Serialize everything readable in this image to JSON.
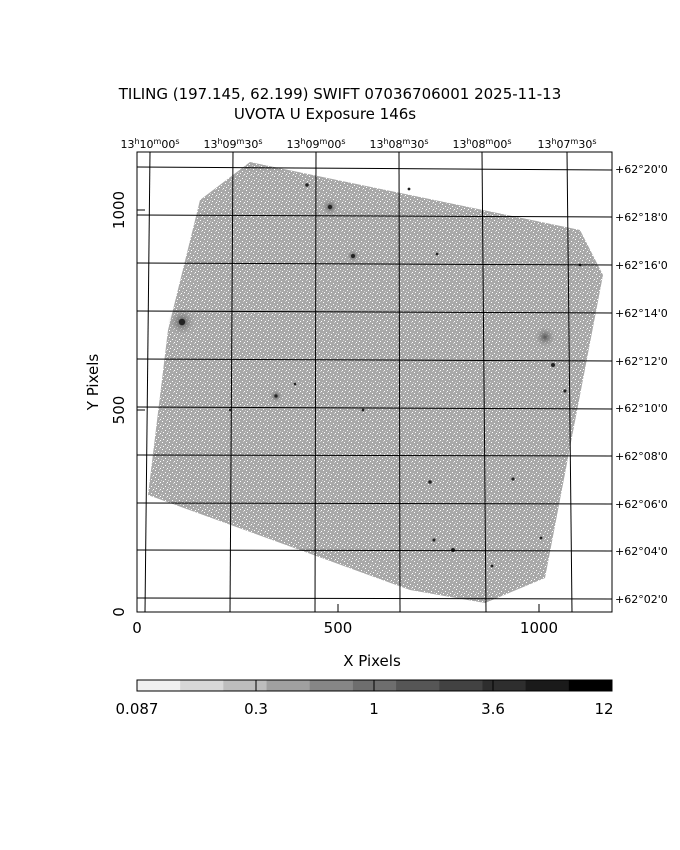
{
  "header": {
    "title_line1": "TILING (197.145, 62.199) SWIFT 07036706001 2025-11-13",
    "title_line2": "UVOTA U Exposure        146s"
  },
  "axes": {
    "x_label": "X Pixels",
    "y_label": "Y Pixels",
    "x_ticks": [
      "0",
      "500",
      "1000"
    ],
    "y_ticks": [
      "0",
      "500",
      "1000"
    ],
    "ra_ticks": [
      {
        "h": "13",
        "m": "10",
        "s": "00"
      },
      {
        "h": "13",
        "m": "09",
        "s": "30"
      },
      {
        "h": "13",
        "m": "09",
        "s": "00"
      },
      {
        "h": "13",
        "m": "08",
        "s": "30"
      },
      {
        "h": "13",
        "m": "08",
        "s": "00"
      },
      {
        "h": "13",
        "m": "07",
        "s": "30"
      }
    ],
    "dec_ticks": [
      "+62°20'0",
      "+62°18'0",
      "+62°16'0",
      "+62°14'0",
      "+62°12'0",
      "+62°10'0",
      "+62°08'0",
      "+62°06'0",
      "+62°04'0",
      "+62°02'0"
    ]
  },
  "colorbar": {
    "labels": [
      "0.087",
      "0.3",
      "1",
      "3.6",
      "12"
    ],
    "grey_levels": [
      "#f0f0f0",
      "#d8d8d8",
      "#bdbdbd",
      "#a0a0a0",
      "#868686",
      "#6e6e6e",
      "#565656",
      "#424242",
      "#2e2e2e",
      "#1a1a1a",
      "#000000"
    ]
  },
  "image": {
    "field_color": "#b4b4b4"
  }
}
